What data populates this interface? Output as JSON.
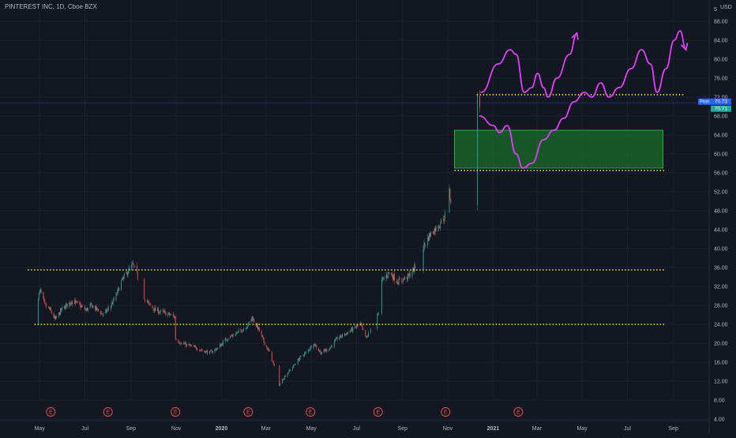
{
  "header": {
    "symbol_title": "PINTEREST INC, 1D, Cboe BZX"
  },
  "price_axis": {
    "currency": "USD",
    "top_partial_label": "5",
    "labels": [
      "4.00",
      "8.00",
      "12.00",
      "16.00",
      "20.00",
      "24.00",
      "28.00",
      "32.00",
      "36.00",
      "40.00",
      "44.00",
      "48.00",
      "52.00",
      "56.00",
      "60.00",
      "64.00",
      "68.00",
      "72.00",
      "76.00",
      "80.00",
      "84.00",
      "88.00"
    ]
  },
  "badges": {
    "post_label": "Post",
    "post_value": "70.73",
    "last_value": "70.71"
  },
  "time_axis": {
    "labels": [
      "May",
      "Jul",
      "Sep",
      "Nov",
      "2020",
      "Mar",
      "May",
      "Jul",
      "Sep",
      "Nov",
      "2021",
      "Mar",
      "May",
      "Jul",
      "Sep"
    ]
  },
  "earnings_marker_label": "E",
  "colors": {
    "background": "#131722",
    "up_candle": "#26a69a",
    "down_candle": "#ef5350",
    "support_line": "#ffeb3b",
    "projection": "#e040fb",
    "zone_fill": "#1b8a2a",
    "badge_post": "#2962ff",
    "badge_last": "#26a69a"
  },
  "chart_data": {
    "type": "candlestick",
    "title": "PINTEREST INC, 1D, Cboe BZX",
    "ylabel": "USD",
    "ylim": [
      2.5,
      91
    ],
    "x_range": [
      "2019-04-18",
      "2021-09-30"
    ],
    "price_path": [
      [
        "2019-04-18",
        24
      ],
      [
        "2019-04-23",
        35.5
      ],
      [
        "2019-04-26",
        29
      ],
      [
        "2019-05-02",
        31
      ],
      [
        "2019-05-08",
        28
      ],
      [
        "2019-05-15",
        27
      ],
      [
        "2019-05-22",
        25
      ],
      [
        "2019-05-30",
        27
      ],
      [
        "2019-06-06",
        28
      ],
      [
        "2019-06-14",
        29
      ],
      [
        "2019-06-24",
        28
      ],
      [
        "2019-07-02",
        27
      ],
      [
        "2019-07-10",
        28
      ],
      [
        "2019-07-18",
        27
      ],
      [
        "2019-07-26",
        26
      ],
      [
        "2019-08-05",
        28
      ],
      [
        "2019-08-12",
        30
      ],
      [
        "2019-08-19",
        33
      ],
      [
        "2019-08-27",
        35
      ],
      [
        "2019-09-04",
        36.5
      ],
      [
        "2019-09-10",
        34
      ],
      [
        "2019-09-18",
        30
      ],
      [
        "2019-09-26",
        28
      ],
      [
        "2019-10-04",
        27
      ],
      [
        "2019-10-14",
        26.5
      ],
      [
        "2019-10-24",
        26
      ],
      [
        "2019-10-30",
        25.5
      ],
      [
        "2019-10-31",
        21
      ],
      [
        "2019-11-08",
        20
      ],
      [
        "2019-11-18",
        19.5
      ],
      [
        "2019-11-28",
        19
      ],
      [
        "2019-12-06",
        18.5
      ],
      [
        "2019-12-16",
        18
      ],
      [
        "2019-12-27",
        19
      ],
      [
        "2020-01-08",
        21
      ],
      [
        "2020-01-20",
        22
      ],
      [
        "2020-01-30",
        23
      ],
      [
        "2020-02-06",
        24
      ],
      [
        "2020-02-11",
        25.5
      ],
      [
        "2020-02-20",
        23
      ],
      [
        "2020-02-28",
        20
      ],
      [
        "2020-03-06",
        18
      ],
      [
        "2020-03-12",
        15
      ],
      [
        "2020-03-18",
        11
      ],
      [
        "2020-03-26",
        13
      ],
      [
        "2020-04-06",
        15
      ],
      [
        "2020-04-16",
        17
      ],
      [
        "2020-04-24",
        18
      ],
      [
        "2020-05-04",
        20
      ],
      [
        "2020-05-14",
        18
      ],
      [
        "2020-05-26",
        19
      ],
      [
        "2020-06-05",
        21
      ],
      [
        "2020-06-16",
        22
      ],
      [
        "2020-06-26",
        23
      ],
      [
        "2020-07-06",
        24
      ],
      [
        "2020-07-14",
        21
      ],
      [
        "2020-07-20",
        23
      ],
      [
        "2020-07-28",
        27
      ],
      [
        "2020-07-31",
        26
      ],
      [
        "2020-08-03",
        33
      ],
      [
        "2020-08-14",
        35
      ],
      [
        "2020-08-26",
        33
      ],
      [
        "2020-09-08",
        34
      ],
      [
        "2020-09-18",
        36
      ],
      [
        "2020-09-28",
        40
      ],
      [
        "2020-10-08",
        43
      ],
      [
        "2020-10-20",
        45
      ],
      [
        "2020-10-28",
        47
      ],
      [
        "2020-11-02",
        53
      ],
      [
        "2020-11-05",
        50
      ],
      [
        "2020-11-09",
        65
      ],
      [
        "2020-11-16",
        60
      ],
      [
        "2020-11-24",
        64
      ],
      [
        "2020-12-02",
        68
      ],
      [
        "2020-12-10",
        72
      ],
      [
        "2020-12-14",
        70.7
      ]
    ],
    "horizontal_levels": [
      {
        "price": 72.5,
        "from": "2020-12-10",
        "to": "2021-09-15"
      },
      {
        "price": 56.5,
        "from": "2020-11-10",
        "to": "2021-08-22"
      },
      {
        "price": 35.5,
        "from": "2019-04-15",
        "to": "2021-08-20"
      },
      {
        "price": 24.0,
        "from": "2019-04-24",
        "to": "2021-08-22"
      }
    ],
    "demand_zone": {
      "from": "2020-11-10",
      "to": "2021-08-18",
      "low": 57,
      "high": 65
    },
    "projection_paths": [
      [
        [
          "2020-12-16",
          73
        ],
        [
          "2021-01-08",
          79
        ],
        [
          "2021-01-24",
          82
        ],
        [
          "2021-02-01",
          81
        ],
        [
          "2021-02-12",
          73
        ],
        [
          "2021-02-22",
          74
        ],
        [
          "2021-03-02",
          77
        ],
        [
          "2021-03-10",
          74
        ],
        [
          "2021-03-16",
          72
        ],
        [
          "2021-03-28",
          76
        ],
        [
          "2021-04-14",
          81
        ],
        [
          "2021-04-24",
          85.5
        ]
      ],
      [
        [
          "2020-12-14",
          68
        ],
        [
          "2021-01-01",
          66
        ],
        [
          "2021-01-10",
          64.5
        ],
        [
          "2021-01-20",
          66
        ],
        [
          "2021-02-01",
          60
        ],
        [
          "2021-02-10",
          57
        ],
        [
          "2021-02-22",
          58
        ],
        [
          "2021-03-10",
          63
        ],
        [
          "2021-03-24",
          65
        ],
        [
          "2021-04-06",
          67.5
        ],
        [
          "2021-04-20",
          71
        ],
        [
          "2021-05-04",
          73
        ],
        [
          "2021-05-14",
          72
        ],
        [
          "2021-05-26",
          75
        ],
        [
          "2021-06-06",
          72
        ],
        [
          "2021-06-20",
          74
        ],
        [
          "2021-07-06",
          78
        ],
        [
          "2021-07-20",
          82
        ],
        [
          "2021-08-01",
          79
        ],
        [
          "2021-08-10",
          73
        ],
        [
          "2021-08-22",
          78
        ],
        [
          "2021-09-02",
          84
        ],
        [
          "2021-09-10",
          86
        ],
        [
          "2021-09-18",
          82
        ]
      ]
    ],
    "earnings_dates": [
      "2019-05-16",
      "2019-08-01",
      "2019-10-31",
      "2020-02-06",
      "2020-04-30",
      "2020-07-30",
      "2020-10-29",
      "2021-02-04"
    ],
    "current_price": 70.71
  }
}
